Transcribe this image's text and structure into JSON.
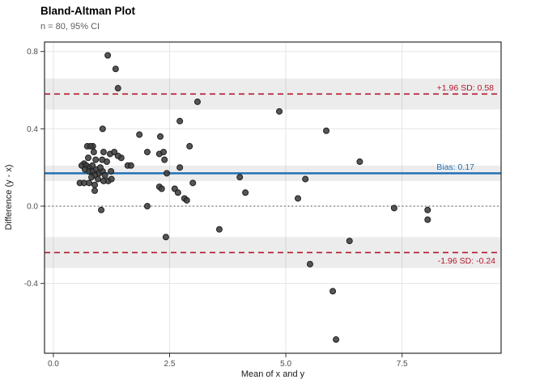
{
  "header": {
    "title": "Bland-Altman Plot",
    "subtitle": "n = 80, 95% CI"
  },
  "chart_data": {
    "type": "scatter",
    "title": "Bland-Altman Plot",
    "subtitle": "n = 80, 95% CI",
    "xlabel": "Mean of x and y",
    "ylabel": "Difference (y - x)",
    "xlim": [
      -0.19,
      9.63
    ],
    "ylim": [
      -0.761,
      0.849
    ],
    "grid": true,
    "legend": "none",
    "x_ticks": [
      {
        "value": 0.0,
        "label": "0.0"
      },
      {
        "value": 2.5,
        "label": "2.5"
      },
      {
        "value": 5.0,
        "label": "5.0"
      },
      {
        "value": 7.5,
        "label": "7.5"
      }
    ],
    "y_ticks": [
      {
        "value": 0.8,
        "label": "0.8"
      },
      {
        "value": 0.4,
        "label": "0.4"
      },
      {
        "value": 0.0,
        "label": "0.0"
      },
      {
        "value": -0.4,
        "label": "-0.4"
      }
    ],
    "reference_lines": [
      {
        "name": "upper-loa",
        "value": 0.58,
        "label": "+1.96 SD: 0.58",
        "color": "#b2182b",
        "style": "dashed",
        "ci": [
          0.5,
          0.66
        ],
        "label_pos": "above"
      },
      {
        "name": "bias",
        "value": 0.17,
        "label": "Bias: 0.17",
        "color": "#2171b5",
        "style": "solid",
        "ci": [
          0.13,
          0.21
        ],
        "label_pos": "above"
      },
      {
        "name": "lower-loa",
        "value": -0.24,
        "label": "-1.96 SD: -0.24",
        "color": "#b2182b",
        "style": "dashed",
        "ci": [
          -0.32,
          -0.16
        ],
        "label_pos": "below"
      },
      {
        "name": "zero",
        "value": 0.0,
        "label": "",
        "color": "#4d4d4d",
        "style": "dotted",
        "ci": null,
        "label_pos": "none"
      }
    ],
    "point_color": "#3f3f3f",
    "point_stroke": "#1f1f1f",
    "band_color": "rgba(0,0,0,0.075)",
    "grid_color": "#e5e5e5",
    "panel_border_color": "#2b2b2b",
    "points": [
      [
        1.17,
        0.78
      ],
      [
        1.34,
        0.71
      ],
      [
        1.39,
        0.61
      ],
      [
        3.1,
        0.54
      ],
      [
        4.86,
        0.49
      ],
      [
        2.72,
        0.44
      ],
      [
        1.06,
        0.4
      ],
      [
        5.87,
        0.39
      ],
      [
        1.85,
        0.37
      ],
      [
        2.3,
        0.36
      ],
      [
        0.85,
        0.31
      ],
      [
        2.93,
        0.31
      ],
      [
        0.73,
        0.31
      ],
      [
        0.8,
        0.31
      ],
      [
        0.87,
        0.28
      ],
      [
        1.08,
        0.28
      ],
      [
        1.22,
        0.27
      ],
      [
        1.31,
        0.28
      ],
      [
        1.46,
        0.25
      ],
      [
        1.6,
        0.21
      ],
      [
        1.15,
        0.23
      ],
      [
        1.05,
        0.24
      ],
      [
        0.91,
        0.24
      ],
      [
        0.66,
        0.22
      ],
      [
        0.61,
        0.21
      ],
      [
        0.71,
        0.21
      ],
      [
        0.78,
        0.2
      ],
      [
        0.84,
        0.21
      ],
      [
        0.68,
        0.19
      ],
      [
        0.77,
        0.18
      ],
      [
        0.85,
        0.18
      ],
      [
        0.92,
        0.19
      ],
      [
        0.98,
        0.17
      ],
      [
        0.89,
        0.16
      ],
      [
        0.82,
        0.15
      ],
      [
        1.06,
        0.18
      ],
      [
        1.11,
        0.16
      ],
      [
        1.24,
        0.18
      ],
      [
        0.96,
        0.14
      ],
      [
        1.08,
        0.13
      ],
      [
        0.57,
        0.12
      ],
      [
        0.66,
        0.12
      ],
      [
        0.77,
        0.12
      ],
      [
        0.89,
        0.11
      ],
      [
        1.18,
        0.13
      ],
      [
        0.89,
        0.08
      ],
      [
        1.03,
        -0.02
      ],
      [
        1.25,
        0.14
      ],
      [
        1.67,
        0.21
      ],
      [
        2.02,
        0.28
      ],
      [
        2.28,
        0.27
      ],
      [
        2.37,
        0.28
      ],
      [
        2.39,
        0.24
      ],
      [
        2.44,
        0.17
      ],
      [
        2.72,
        0.2
      ],
      [
        2.61,
        0.09
      ],
      [
        2.28,
        0.1
      ],
      [
        2.33,
        0.09
      ],
      [
        2.68,
        0.07
      ],
      [
        2.82,
        0.04
      ],
      [
        2.87,
        0.03
      ],
      [
        3.0,
        0.12
      ],
      [
        2.02,
        0.0
      ],
      [
        2.42,
        -0.16
      ],
      [
        3.57,
        -0.12
      ],
      [
        4.01,
        0.15
      ],
      [
        4.13,
        0.07
      ],
      [
        5.26,
        0.04
      ],
      [
        5.42,
        0.14
      ],
      [
        5.52,
        -0.3
      ],
      [
        6.01,
        -0.44
      ],
      [
        6.08,
        -0.69
      ],
      [
        6.37,
        -0.18
      ],
      [
        6.59,
        0.23
      ],
      [
        7.33,
        -0.01
      ],
      [
        8.05,
        -0.02
      ],
      [
        8.05,
        -0.07
      ],
      [
        1.39,
        0.26
      ],
      [
        0.75,
        0.25
      ],
      [
        1.01,
        0.2
      ]
    ]
  }
}
